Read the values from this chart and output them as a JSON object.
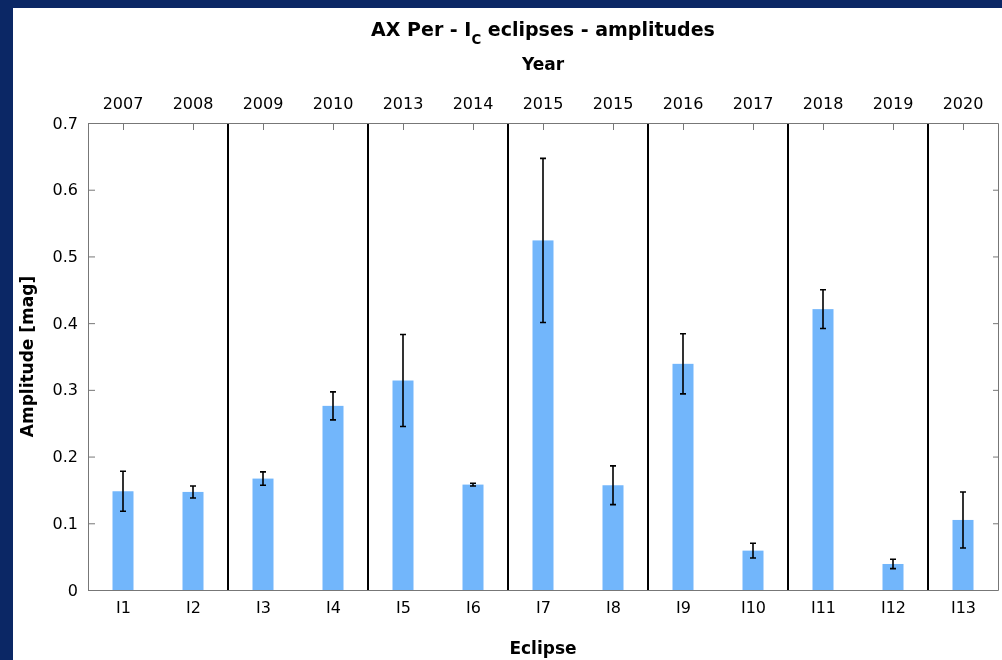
{
  "chart_data": {
    "type": "bar",
    "title": "AX Per - I$_{C}$ eclipses - amplitudes",
    "xlabel": "Eclipse",
    "ylabel": "Amplitude [mag]",
    "x2label": "Year",
    "categories": [
      "I1",
      "I2",
      "I3",
      "I4",
      "I5",
      "I6",
      "I7",
      "I8",
      "I9",
      "I10",
      "I11",
      "I12",
      "I13"
    ],
    "values": [
      0.148,
      0.147,
      0.167,
      0.276,
      0.314,
      0.158,
      0.524,
      0.157,
      0.339,
      0.059,
      0.421,
      0.039,
      0.105
    ],
    "errors": [
      0.03,
      0.009,
      0.01,
      0.021,
      0.069,
      0.002,
      0.123,
      0.029,
      0.045,
      0.011,
      0.029,
      0.007,
      0.042
    ],
    "color": "#72b6fb",
    "annotations": [
      {
        "text": "2007",
        "x": "I1"
      },
      {
        "text": "2008",
        "x": "I2"
      },
      {
        "text": "2009",
        "x": "I3"
      },
      {
        "text": "2010",
        "x": "I4"
      },
      {
        "text": "2013",
        "x": "I5"
      },
      {
        "text": "2014",
        "x": "I6"
      },
      {
        "text": "2015",
        "x": "I7"
      },
      {
        "text": "2015",
        "x": "I8"
      },
      {
        "text": "2016",
        "x": "I9"
      },
      {
        "text": "2017",
        "x": "I10"
      },
      {
        "text": "2018",
        "x": "I11"
      },
      {
        "text": "2019",
        "x": "I12"
      },
      {
        "text": "2020",
        "x": "I13"
      }
    ],
    "ylim": [
      0,
      0.7
    ],
    "yticks": [
      0,
      0.1,
      0.2,
      0.3,
      0.4,
      0.5,
      0.6,
      0.7
    ],
    "grid": false
  }
}
